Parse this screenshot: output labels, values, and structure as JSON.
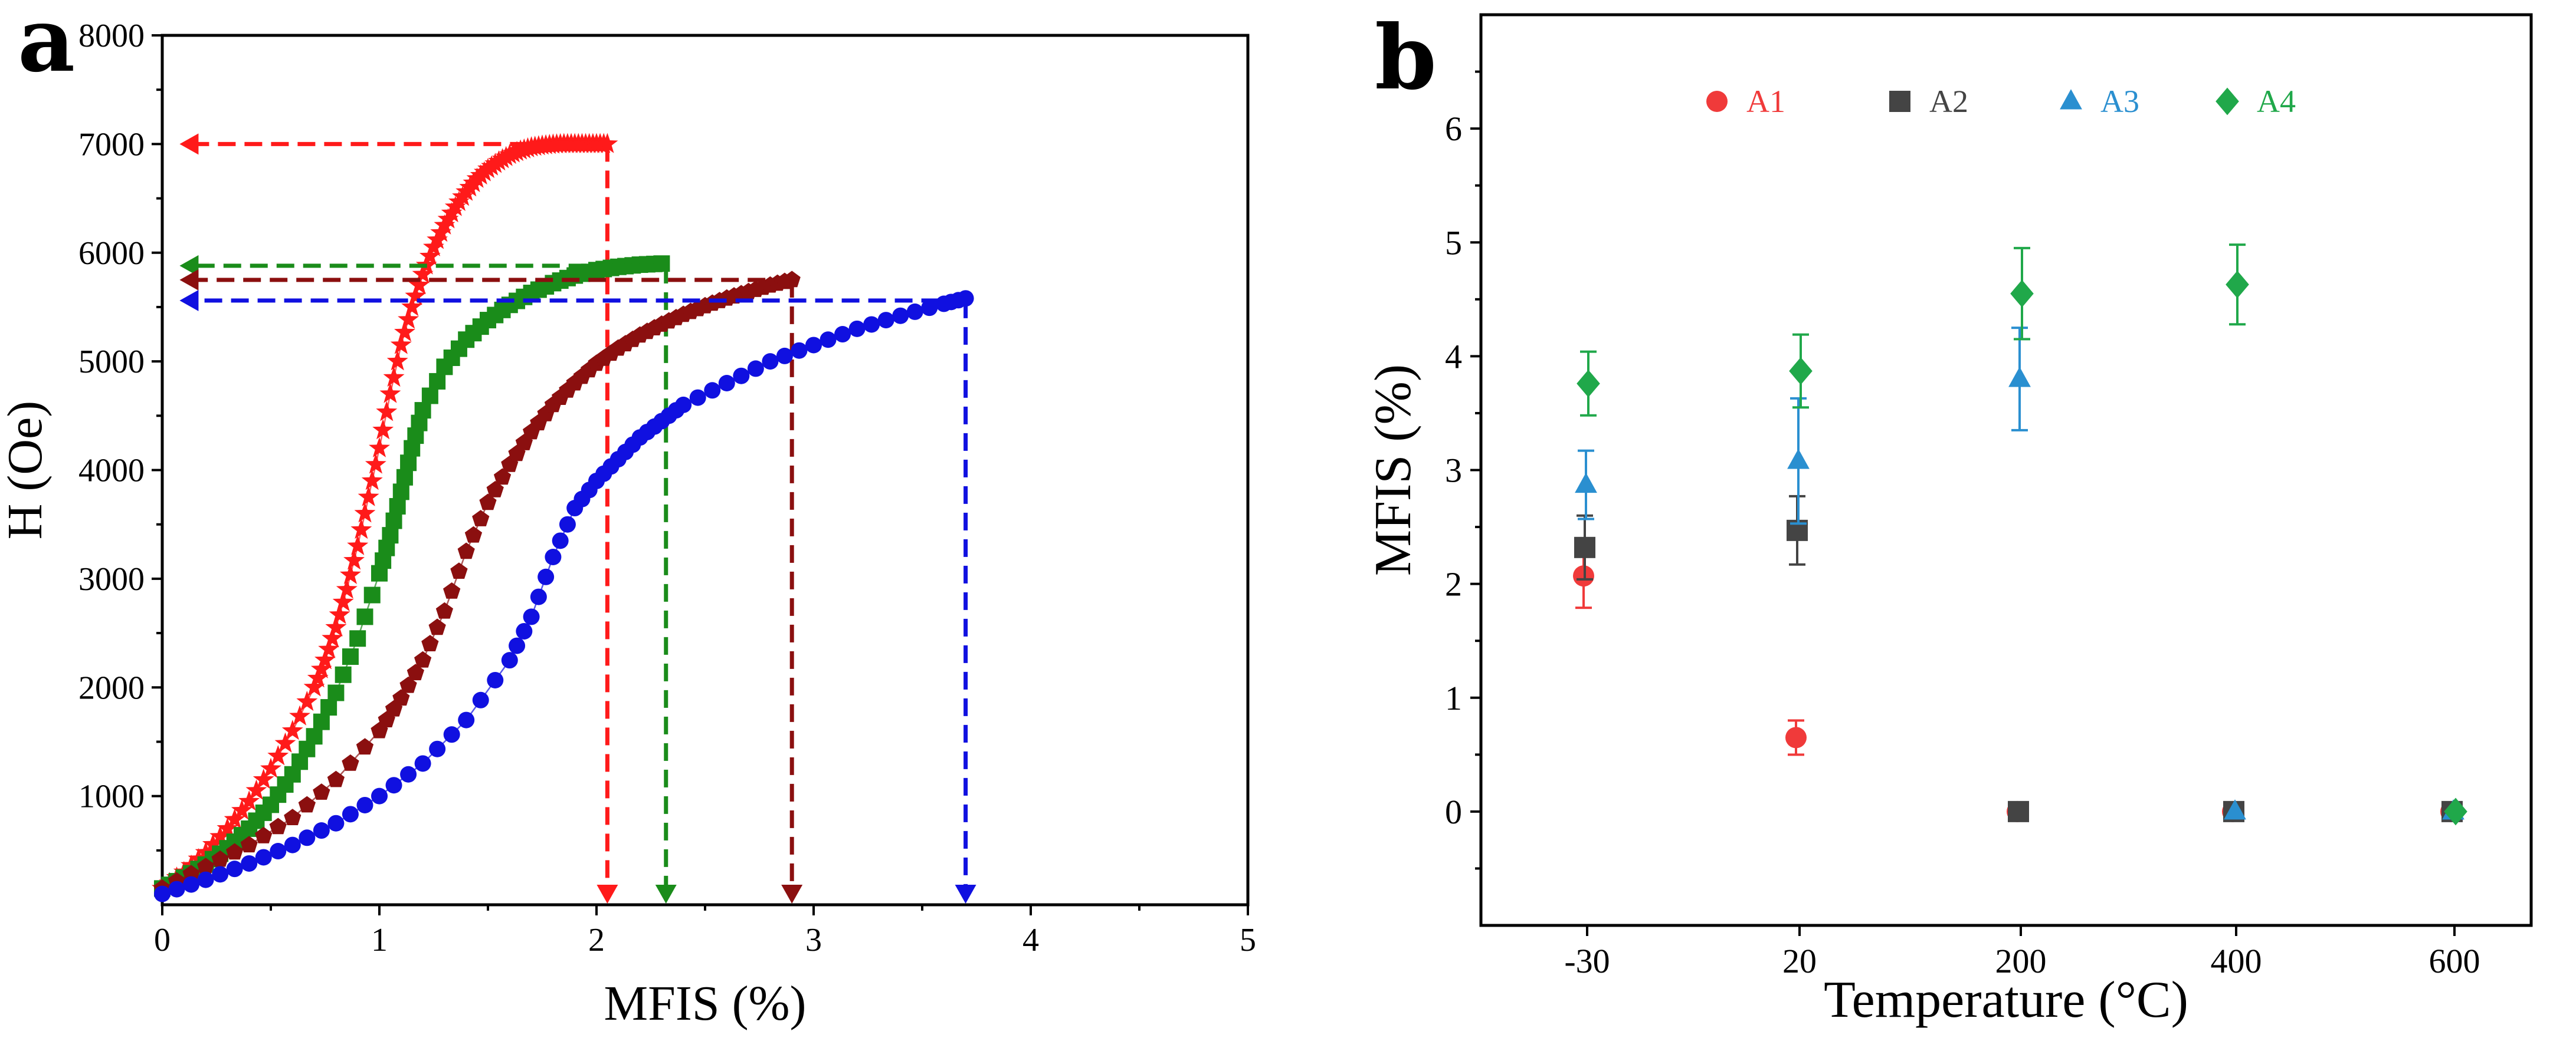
{
  "chart_data": [
    {
      "panel": "a",
      "type": "line",
      "xlabel": "MFIS (%)",
      "ylabel": "H (Oe)",
      "xlim": [
        0,
        5
      ],
      "ylim": [
        0,
        8000
      ],
      "xticks": [
        "0",
        "1",
        "2",
        "3",
        "4",
        "5"
      ],
      "yticks": [
        "1000",
        "2000",
        "3000",
        "4000",
        "5000",
        "6000",
        "7000",
        "8000"
      ],
      "series": [
        {
          "name": "red-stars",
          "color": "#ff1a1a",
          "marker": "star",
          "x": [
            0.0,
            0.1,
            0.2,
            0.3,
            0.4,
            0.5,
            0.6,
            0.7,
            0.75,
            0.8,
            0.85,
            0.9,
            0.95,
            1.0,
            1.05,
            1.1,
            1.15,
            1.2,
            1.25,
            1.3,
            1.35,
            1.4,
            1.45,
            1.5,
            1.55,
            1.6,
            1.65,
            1.7,
            1.75,
            1.8,
            1.85,
            1.9,
            1.95,
            2.0,
            2.05
          ],
          "y": [
            150,
            300,
            480,
            700,
            950,
            1250,
            1600,
            2000,
            2250,
            2550,
            2900,
            3300,
            3750,
            4200,
            4700,
            5150,
            5500,
            5800,
            6050,
            6250,
            6420,
            6560,
            6680,
            6770,
            6840,
            6900,
            6940,
            6970,
            6985,
            6995,
            7000,
            7000,
            7000,
            7000,
            7000
          ],
          "arrow_value": 7000,
          "arrow_x": 2.05
        },
        {
          "name": "green-squares",
          "color": "#1a8c1a",
          "marker": "square",
          "x": [
            0.0,
            0.1,
            0.2,
            0.3,
            0.4,
            0.5,
            0.6,
            0.7,
            0.8,
            0.9,
            1.0,
            1.05,
            1.1,
            1.15,
            1.2,
            1.3,
            1.4,
            1.5,
            1.6,
            1.7,
            1.8,
            1.9,
            2.0,
            2.1,
            2.2,
            2.3
          ],
          "y": [
            150,
            250,
            370,
            520,
            700,
            920,
            1200,
            1550,
            1950,
            2450,
            3050,
            3400,
            3800,
            4200,
            4550,
            4950,
            5200,
            5380,
            5520,
            5630,
            5720,
            5790,
            5840,
            5870,
            5890,
            5900
          ],
          "arrow_value": 5880,
          "arrow_x": 2.32
        },
        {
          "name": "darkred-pentagons",
          "color": "#8b0f0f",
          "marker": "pentagon",
          "x": [
            0.0,
            0.2,
            0.4,
            0.6,
            0.8,
            1.0,
            1.1,
            1.2,
            1.3,
            1.4,
            1.5,
            1.6,
            1.7,
            1.8,
            1.9,
            2.0,
            2.1,
            2.2,
            2.3,
            2.4,
            2.5,
            2.6,
            2.7,
            2.8,
            2.9
          ],
          "y": [
            150,
            350,
            550,
            800,
            1150,
            1600,
            1900,
            2250,
            2700,
            3250,
            3700,
            4050,
            4350,
            4600,
            4800,
            4980,
            5120,
            5240,
            5340,
            5430,
            5510,
            5580,
            5640,
            5700,
            5750
          ],
          "arrow_value": 5750,
          "arrow_x": 2.9
        },
        {
          "name": "blue-circles",
          "color": "#1010e0",
          "marker": "circle",
          "x": [
            0.0,
            0.2,
            0.4,
            0.6,
            0.8,
            1.0,
            1.2,
            1.4,
            1.6,
            1.7,
            1.8,
            1.9,
            2.0,
            2.1,
            2.2,
            2.3,
            2.4,
            2.6,
            2.8,
            3.0,
            3.2,
            3.4,
            3.6,
            3.7
          ],
          "y": [
            100,
            230,
            380,
            550,
            750,
            1000,
            1300,
            1700,
            2250,
            2650,
            3200,
            3650,
            3900,
            4100,
            4300,
            4450,
            4600,
            4800,
            5000,
            5150,
            5300,
            5420,
            5530,
            5580
          ],
          "arrow_value": 5560,
          "arrow_x": 3.7
        }
      ]
    },
    {
      "panel": "b",
      "type": "scatter",
      "xlabel": "Temperature (°C)",
      "ylabel": "MFIS (%)",
      "categories": [
        "-30",
        "20",
        "200",
        "400",
        "600"
      ],
      "ylim": [
        -1,
        7
      ],
      "yticks": [
        "0",
        "1",
        "2",
        "3",
        "4",
        "5",
        "6"
      ],
      "legend_position": "top",
      "series": [
        {
          "name": "A1",
          "color": "#f03a3a",
          "marker": "circle",
          "values": [
            2.07,
            0.65,
            0.0,
            0.0,
            0.0
          ],
          "errors": [
            0.28,
            0.15,
            0.02,
            0.02,
            0.02
          ]
        },
        {
          "name": "A2",
          "color": "#444444",
          "marker": "square",
          "values": [
            2.32,
            2.47,
            0.0,
            0.0,
            0.0
          ],
          "errors": [
            0.28,
            0.3,
            0.02,
            0.02,
            0.02
          ]
        },
        {
          "name": "A3",
          "color": "#2a8fd0",
          "marker": "triangle",
          "values": [
            2.87,
            3.08,
            3.8,
            0.0,
            0.0
          ],
          "errors": [
            0.3,
            0.55,
            0.45,
            0.02,
            0.02
          ]
        },
        {
          "name": "A4",
          "color": "#20a84a",
          "marker": "diamond",
          "values": [
            3.76,
            3.87,
            4.55,
            4.63,
            0.0
          ],
          "errors": [
            0.28,
            0.32,
            0.4,
            0.35,
            0.02
          ]
        }
      ]
    }
  ],
  "labels": {
    "panel_a": "a",
    "panel_b": "b"
  }
}
